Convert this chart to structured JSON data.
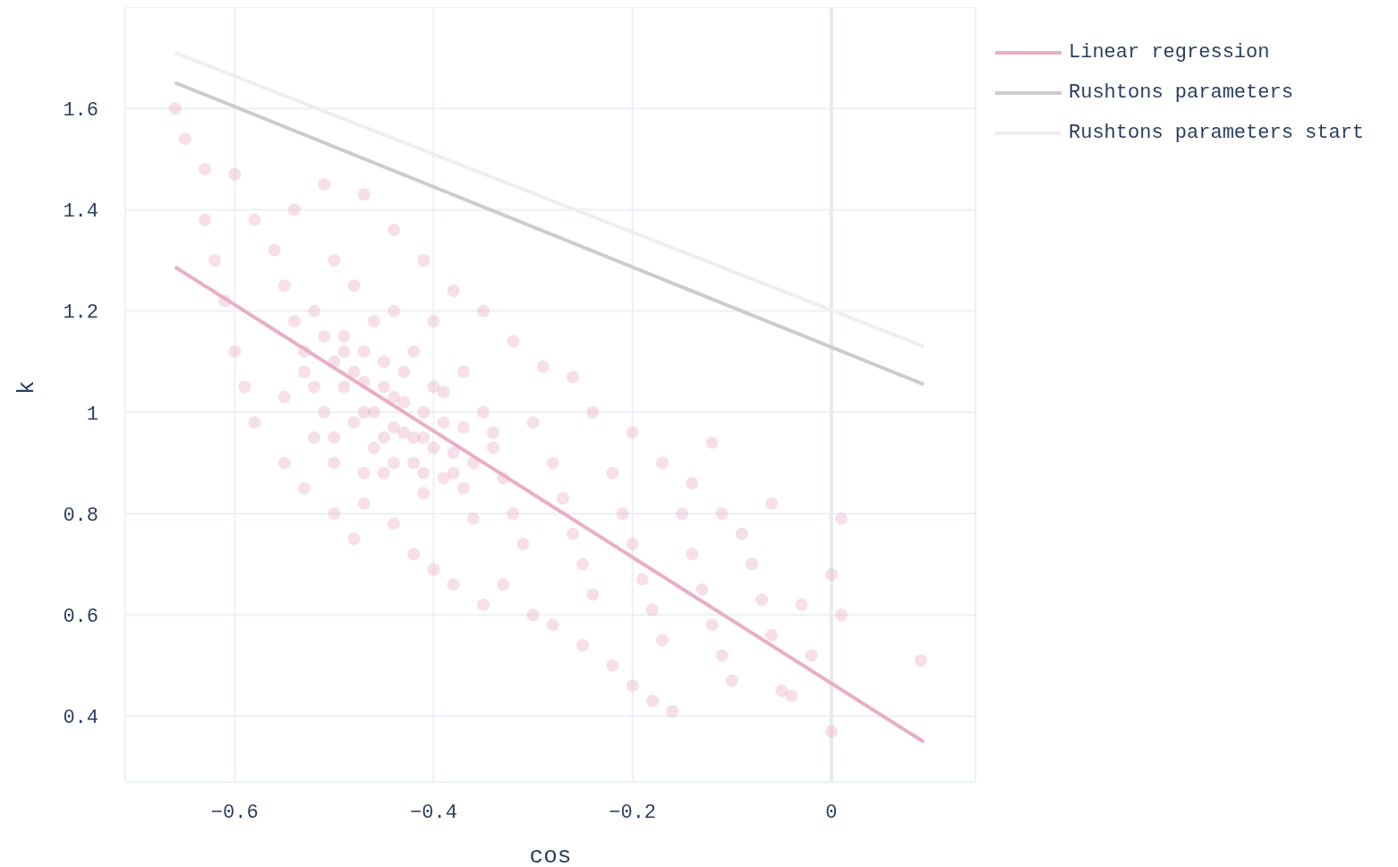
{
  "chart_data": {
    "type": "scatter",
    "xlabel": "cos",
    "ylabel": "k",
    "xlim": [
      -0.71,
      0.145
    ],
    "xticks": [
      -0.6,
      -0.4,
      -0.2,
      0
    ],
    "ylim": [
      0.27,
      1.8
    ],
    "yticks": [
      0.4,
      0.6,
      0.8,
      1,
      1.2,
      1.4,
      1.6
    ],
    "grid": true,
    "legend": "top right",
    "ref_lines": [
      {
        "axis": "x",
        "value": 0,
        "color": "#e6e9f2"
      }
    ],
    "series": [
      {
        "color": "#e8aec6",
        "marker": "circle",
        "x": [
          -0.5,
          -0.49,
          -0.48,
          -0.47,
          -0.46,
          -0.45,
          -0.44,
          -0.43,
          -0.42,
          -0.41,
          -0.4,
          -0.39,
          -0.51,
          -0.49,
          -0.47,
          -0.45,
          -0.43,
          -0.41,
          -0.39,
          -0.37,
          -0.53,
          -0.5,
          -0.47,
          -0.44,
          -0.41,
          -0.38,
          -0.36,
          -0.34,
          -0.55,
          -0.52,
          -0.58,
          -0.56,
          -0.55,
          -0.54,
          -0.53,
          -0.52,
          -0.51,
          -0.5,
          -0.52,
          -0.5,
          -0.49,
          -0.48,
          -0.47,
          -0.46,
          -0.45,
          -0.48,
          -0.46,
          -0.45,
          -0.44,
          -0.43,
          -0.42,
          -0.41,
          -0.44,
          -0.42,
          -0.4,
          -0.39,
          -0.38,
          -0.37,
          -0.36,
          -0.4,
          -0.37,
          -0.35,
          -0.34,
          -0.33,
          -0.32,
          -0.31,
          -0.3,
          -0.28,
          -0.27,
          -0.26,
          -0.25,
          -0.24,
          -0.22,
          -0.21,
          -0.2,
          -0.19,
          -0.18,
          -0.17,
          -0.15,
          -0.14,
          -0.13,
          -0.12,
          -0.11,
          -0.1,
          -0.08,
          -0.07,
          -0.06,
          -0.05,
          -0.03,
          -0.02,
          0.0,
          0.01,
          0.01,
          0.09,
          0.0,
          -0.04,
          -0.63,
          -0.6,
          -0.66,
          -0.65,
          -0.63,
          -0.62,
          -0.61,
          -0.6,
          -0.59,
          -0.58,
          -0.55,
          -0.53,
          -0.5,
          -0.48,
          -0.47,
          -0.44,
          -0.42,
          -0.4,
          -0.38,
          -0.35,
          -0.33,
          -0.3,
          -0.28,
          -0.25,
          -0.22,
          -0.2,
          -0.18,
          -0.16,
          -0.54,
          -0.51,
          -0.47,
          -0.44,
          -0.41,
          -0.38,
          -0.35,
          -0.32,
          -0.29,
          -0.26,
          -0.24,
          -0.2,
          -0.17,
          -0.14,
          -0.11,
          -0.09,
          -0.06,
          -0.12
        ],
        "values": [
          1.1,
          1.05,
          0.98,
          1.06,
          1.0,
          0.95,
          0.97,
          1.02,
          0.95,
          0.88,
          0.93,
          0.87,
          1.15,
          1.12,
          1.12,
          1.05,
          1.08,
          1.0,
          1.04,
          0.97,
          1.08,
          0.9,
          0.88,
          0.9,
          0.95,
          0.88,
          0.9,
          0.96,
          1.03,
          0.95,
          1.38,
          1.32,
          1.25,
          1.18,
          1.12,
          1.05,
          1.0,
          0.95,
          1.2,
          1.3,
          1.15,
          1.08,
          1.0,
          0.93,
          0.88,
          1.25,
          1.18,
          1.1,
          1.03,
          0.96,
          0.9,
          0.84,
          1.2,
          1.12,
          1.05,
          0.98,
          0.92,
          0.85,
          0.79,
          1.18,
          1.08,
          1.0,
          0.93,
          0.87,
          0.8,
          0.74,
          0.98,
          0.9,
          0.83,
          0.76,
          0.7,
          0.64,
          0.88,
          0.8,
          0.74,
          0.67,
          0.61,
          0.55,
          0.8,
          0.72,
          0.65,
          0.58,
          0.52,
          0.47,
          0.7,
          0.63,
          0.56,
          0.45,
          0.62,
          0.52,
          0.68,
          0.6,
          0.79,
          0.51,
          0.37,
          0.44,
          1.48,
          1.47,
          1.6,
          1.54,
          1.38,
          1.3,
          1.22,
          1.12,
          1.05,
          0.98,
          0.9,
          0.85,
          0.8,
          0.75,
          0.82,
          0.78,
          0.72,
          0.69,
          0.66,
          0.62,
          0.66,
          0.6,
          0.58,
          0.54,
          0.5,
          0.46,
          0.43,
          0.41,
          1.4,
          1.45,
          1.43,
          1.36,
          1.3,
          1.24,
          1.2,
          1.14,
          1.09,
          1.07,
          1.0,
          0.96,
          0.9,
          0.86,
          0.8,
          0.76,
          0.82,
          0.94
        ]
      },
      {
        "type": "line",
        "name": "Linear regression",
        "color": "#e8aec6",
        "line_style": "solid",
        "marker": "none",
        "x": [
          -0.66,
          0.093
        ],
        "values": [
          1.287,
          0.349
        ]
      },
      {
        "type": "line",
        "name": "Rushtons parameters",
        "color": "#cccccc",
        "line_style": "solid",
        "marker": "none",
        "x": [
          -0.66,
          0.093
        ],
        "values": [
          1.651,
          1.055
        ]
      },
      {
        "type": "line",
        "name": "Rushtons parameters start",
        "color": "#eeeeee",
        "line_style": "solid",
        "marker": "none",
        "x": [
          -0.66,
          0.093
        ],
        "values": [
          1.71,
          1.13
        ]
      }
    ]
  }
}
